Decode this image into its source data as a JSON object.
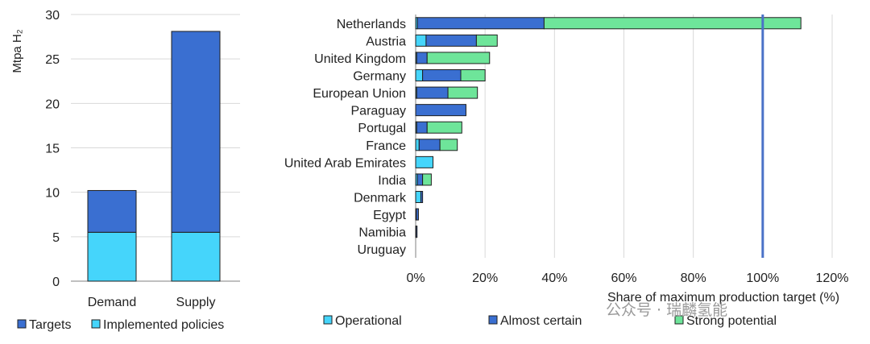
{
  "colors": {
    "targets": "#3a6fd1",
    "implemented": "#45d5fb",
    "operational": "#45d5fb",
    "almost_certain": "#3a6fd1",
    "strong_potential": "#6ee59a",
    "reference_line": "#4a72c8",
    "grid": "#d9d9d9",
    "axis": "#808080"
  },
  "chart_data": [
    {
      "type": "bar",
      "stacked": true,
      "categories": [
        "Demand",
        "Supply"
      ],
      "series": [
        {
          "name": "Implemented policies",
          "values": [
            5.5,
            5.5
          ]
        },
        {
          "name": "Targets",
          "values": [
            4.7,
            22.6
          ]
        }
      ],
      "ylabel": "Mtpa H₂",
      "ylim": [
        0,
        30
      ],
      "yticks": [
        "0",
        "5",
        "10",
        "15",
        "20",
        "25",
        "30"
      ],
      "legend_position": "bottom",
      "legend": [
        "Targets",
        "Implemented policies"
      ]
    },
    {
      "type": "bar",
      "orientation": "horizontal",
      "stacked": true,
      "categories": [
        "Netherlands",
        "Austria",
        "United Kingdom",
        "Germany",
        "European Union",
        "Paraguay",
        "Portugal",
        "France",
        "United Arab Emirates",
        "India",
        "Denmark",
        "Egypt",
        "Namibia",
        "Uruguay"
      ],
      "series": [
        {
          "name": "Operational",
          "values": [
            0.5,
            3,
            0.3,
            2,
            0.3,
            0,
            0.3,
            1,
            5,
            0.5,
            1.5,
            0.2,
            0.1,
            0
          ]
        },
        {
          "name": "Almost certain",
          "values": [
            36.5,
            14.5,
            3,
            11,
            9,
            14.5,
            3,
            6,
            0,
            1.5,
            0.5,
            0.6,
            0.3,
            0
          ]
        },
        {
          "name": "Strong potential",
          "values": [
            74,
            6,
            18,
            7,
            8.5,
            0,
            10,
            5,
            0,
            2.5,
            0,
            0,
            0,
            0
          ]
        }
      ],
      "xlabel": "Share of maximum production target (%)",
      "xlim": [
        0,
        120
      ],
      "xticks": [
        "0%",
        "20%",
        "40%",
        "60%",
        "80%",
        "100%",
        "120%"
      ],
      "reference_line": 100,
      "grid": "vertical",
      "legend_position": "bottom",
      "legend": [
        "Operational",
        "Almost certain",
        "Strong potential"
      ]
    }
  ],
  "watermark": "公众号 · 瑞麟氢能"
}
